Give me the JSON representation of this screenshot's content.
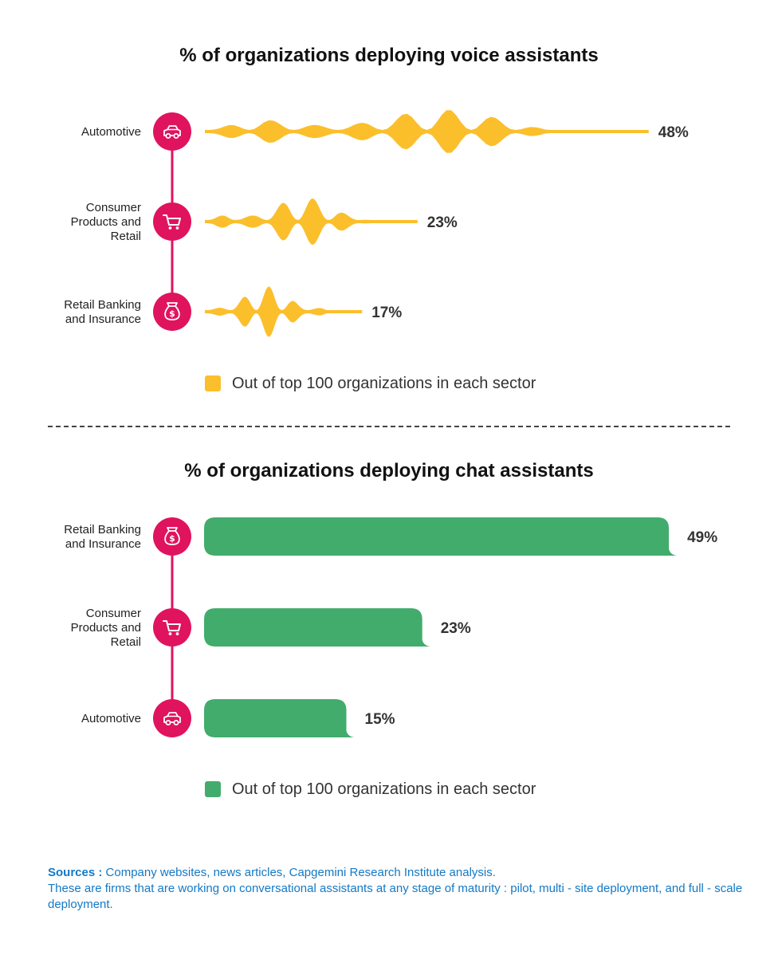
{
  "colors": {
    "voice": "#fbbf2c",
    "chat": "#41ac6c",
    "icon_bg": "#e0135e",
    "sources": "#1479c5"
  },
  "chart_data": [
    {
      "type": "bar",
      "title": "% of organizations deploying voice assistants",
      "categories": [
        "Automotive",
        "Consumer Products and Retail",
        "Retail Banking and Insurance"
      ],
      "category_icons": [
        "car-icon",
        "shopping-cart-icon",
        "money-bag-icon"
      ],
      "values": [
        48,
        23,
        17
      ],
      "value_labels": [
        "48%",
        "23%",
        "17%"
      ],
      "unit": "%",
      "legend": "Out of top 100 organizations in each sector",
      "legend_position": "bottom",
      "mark_style": "sound-wave",
      "color": "#fbbf2c"
    },
    {
      "type": "bar",
      "title": "% of organizations deploying chat assistants",
      "categories": [
        "Retail Banking and Insurance",
        "Consumer Products and Retail",
        "Automotive"
      ],
      "category_icons": [
        "money-bag-icon",
        "shopping-cart-icon",
        "car-icon"
      ],
      "values": [
        49,
        23,
        15
      ],
      "value_labels": [
        "49%",
        "23%",
        "15%"
      ],
      "unit": "%",
      "legend": "Out of top 100 organizations in each sector",
      "legend_position": "bottom",
      "mark_style": "speech-bubble",
      "color": "#41ac6c"
    }
  ],
  "sources": {
    "label": "Sources :",
    "text": "Company websites, news articles, Capgemini Research Institute analysis.",
    "note": "These are firms that are working on conversational assistants at any stage of maturity : pilot, multi - site deployment, and full - scale deployment."
  }
}
